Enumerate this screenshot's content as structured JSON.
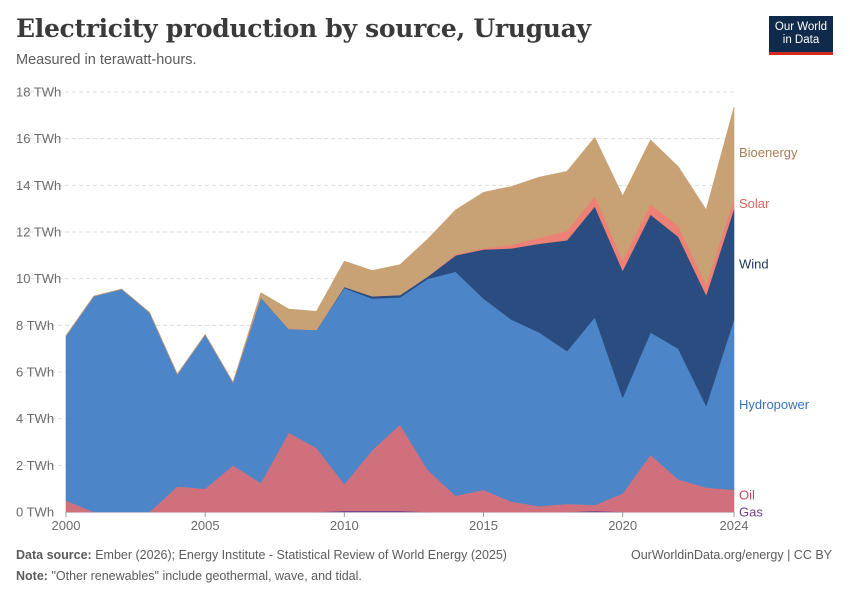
{
  "header": {
    "title": "Electricity production by source, Uruguay",
    "subtitle": "Measured in terawatt-hours.",
    "logo_line1": "Our World",
    "logo_line2": "in Data"
  },
  "footer": {
    "source_label": "Data source:",
    "source_text": "Ember (2026); Energy Institute - Statistical Review of World Energy (2025)",
    "note_label": "Note:",
    "note_text": "\"Other renewables\" include geothermal, wave, and tidal.",
    "url": "OurWorldinData.org/energy | CC BY"
  },
  "chart_data": {
    "type": "area",
    "stacked": true,
    "title": "Electricity production by source, Uruguay",
    "ylabel": "",
    "xlabel": "",
    "unit": "TWh",
    "ylim": [
      0,
      18
    ],
    "xlim": [
      2000,
      2024
    ],
    "grid": "horizontal dashed",
    "yticks": [
      "0 TWh",
      "2 TWh",
      "4 TWh",
      "6 TWh",
      "8 TWh",
      "10 TWh",
      "12 TWh",
      "14 TWh",
      "16 TWh",
      "18 TWh"
    ],
    "ytick_values": [
      0,
      2,
      4,
      6,
      8,
      10,
      12,
      14,
      16,
      18
    ],
    "xticks": [
      "2000",
      "2005",
      "2010",
      "2015",
      "2020",
      "2024"
    ],
    "xtick_values": [
      2000,
      2005,
      2010,
      2015,
      2020,
      2024
    ],
    "x": [
      2000,
      2001,
      2002,
      2003,
      2004,
      2005,
      2006,
      2007,
      2008,
      2009,
      2010,
      2011,
      2012,
      2013,
      2014,
      2015,
      2016,
      2017,
      2018,
      2019,
      2020,
      2021,
      2022,
      2023,
      2024
    ],
    "series": [
      {
        "name": "Gas",
        "color": "#6d3e91",
        "values": [
          0,
          0,
          0,
          0,
          0,
          0,
          0,
          0,
          0,
          0,
          0.05,
          0.05,
          0.05,
          0,
          0,
          0,
          0,
          0,
          0,
          0.05,
          0,
          0,
          0,
          0,
          0
        ]
      },
      {
        "name": "Oil",
        "color": "#d0707d",
        "values": [
          0.5,
          0,
          0,
          0,
          1.1,
          1.0,
          2.0,
          1.25,
          3.4,
          2.75,
          1.15,
          2.6,
          3.7,
          1.8,
          0.7,
          0.95,
          0.45,
          0.25,
          0.35,
          0.25,
          0.8,
          2.45,
          1.4,
          1.05,
          0.95
        ]
      },
      {
        "name": "Hydropower",
        "color": "#4c86c8",
        "values": [
          7.05,
          9.25,
          9.55,
          8.55,
          4.8,
          6.6,
          3.55,
          7.95,
          4.45,
          5.05,
          8.4,
          6.5,
          5.45,
          8.2,
          9.6,
          8.2,
          7.8,
          7.45,
          6.55,
          8.05,
          4.1,
          5.25,
          5.6,
          3.5,
          7.3
        ]
      },
      {
        "name": "Wind",
        "color": "#2b4c7e",
        "values": [
          0,
          0,
          0,
          0,
          0,
          0,
          0,
          0,
          0,
          0,
          0.05,
          0.1,
          0.1,
          0.1,
          0.7,
          2.1,
          3.05,
          3.8,
          4.75,
          4.75,
          5.45,
          5.05,
          4.8,
          4.75,
          4.75
        ]
      },
      {
        "name": "Solar",
        "color": "#ee8176",
        "values": [
          0,
          0,
          0,
          0,
          0,
          0,
          0,
          0,
          0,
          0,
          0,
          0,
          0,
          0,
          0.05,
          0.05,
          0.15,
          0.25,
          0.4,
          0.45,
          0.45,
          0.45,
          0.45,
          0.45,
          0.45
        ]
      },
      {
        "name": "Bioenergy",
        "color": "#c8a174",
        "values": [
          0,
          0,
          0,
          0,
          0,
          0,
          0,
          0.2,
          0.85,
          0.8,
          1.1,
          1.1,
          1.3,
          1.6,
          1.9,
          2.4,
          2.5,
          2.6,
          2.55,
          2.5,
          2.75,
          2.75,
          2.55,
          3.2,
          3.9
        ]
      }
    ],
    "legend": "right-aligned labels at series ends"
  }
}
